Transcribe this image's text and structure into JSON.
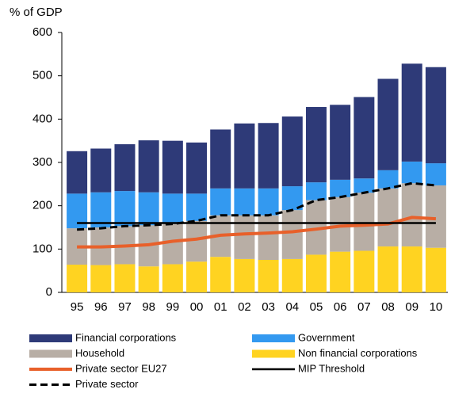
{
  "chart_data": {
    "type": "bar",
    "y_label": "% of GDP",
    "categories": [
      "95",
      "96",
      "97",
      "98",
      "99",
      "00",
      "01",
      "02",
      "03",
      "04",
      "05",
      "06",
      "07",
      "08",
      "09",
      "10"
    ],
    "ylim": [
      0,
      600
    ],
    "yticks": [
      0,
      100,
      200,
      300,
      400,
      500,
      600
    ],
    "stacked": true,
    "series": [
      {
        "name": "Financial corporations",
        "type": "bar",
        "color": "#2e3a78",
        "values": [
          98,
          101,
          108,
          120,
          122,
          118,
          136,
          150,
          151,
          161,
          174,
          173,
          188,
          211,
          226,
          222
        ]
      },
      {
        "name": "Government",
        "type": "bar",
        "color": "#3399f0",
        "values": [
          80,
          81,
          81,
          76,
          70,
          63,
          62,
          62,
          62,
          55,
          41,
          40,
          33,
          42,
          50,
          51
        ]
      },
      {
        "name": "Household",
        "type": "bar",
        "color": "#b8aea5",
        "values": [
          84,
          87,
          88,
          95,
          93,
          94,
          96,
          101,
          103,
          113,
          126,
          126,
          134,
          134,
          146,
          144
        ]
      },
      {
        "name": "Non financial corporations",
        "type": "bar",
        "color": "#ffd321",
        "values": [
          64,
          63,
          65,
          60,
          65,
          71,
          82,
          77,
          75,
          77,
          87,
          94,
          96,
          106,
          106,
          103
        ]
      },
      {
        "name": "Private sector EU27",
        "type": "line",
        "color": "#e8602a",
        "values": [
          105,
          105,
          107,
          110,
          118,
          123,
          132,
          135,
          137,
          140,
          146,
          153,
          155,
          158,
          173,
          170
        ]
      },
      {
        "name": "MIP Threshold",
        "type": "line",
        "color": "#000000",
        "values": [
          160,
          160,
          160,
          160,
          160,
          160,
          160,
          160,
          160,
          160,
          160,
          160,
          160,
          160,
          160,
          160
        ]
      },
      {
        "name": "Private sector",
        "type": "line",
        "color": "#000000",
        "dashed": true,
        "values": [
          145,
          148,
          153,
          155,
          158,
          165,
          178,
          178,
          178,
          190,
          213,
          220,
          230,
          240,
          252,
          247
        ]
      }
    ]
  }
}
